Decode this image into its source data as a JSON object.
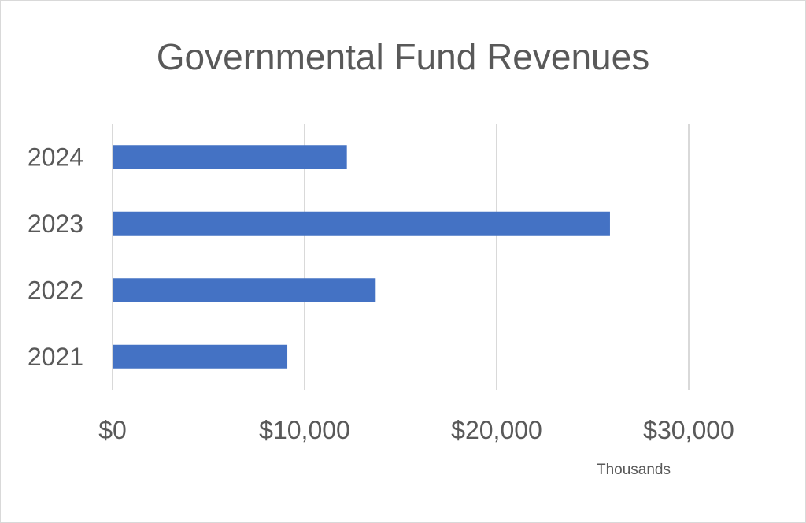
{
  "chart_data": {
    "type": "bar",
    "orientation": "horizontal",
    "title": "Governmental Fund Revenues",
    "categories": [
      "2024",
      "2023",
      "2022",
      "2021"
    ],
    "values": [
      12200,
      25900,
      13700,
      9100
    ],
    "x_ticks": [
      0,
      10000,
      20000,
      30000
    ],
    "x_tick_labels": [
      "$0",
      "$10,000",
      "$20,000",
      "$30,000"
    ],
    "x_unit_label": "Thousands",
    "xlim": [
      0,
      30000
    ],
    "grid": true,
    "legend": "none",
    "colors": {
      "bar": "#4472c4",
      "grid": "#d9d9d9",
      "text": "#595959"
    }
  }
}
